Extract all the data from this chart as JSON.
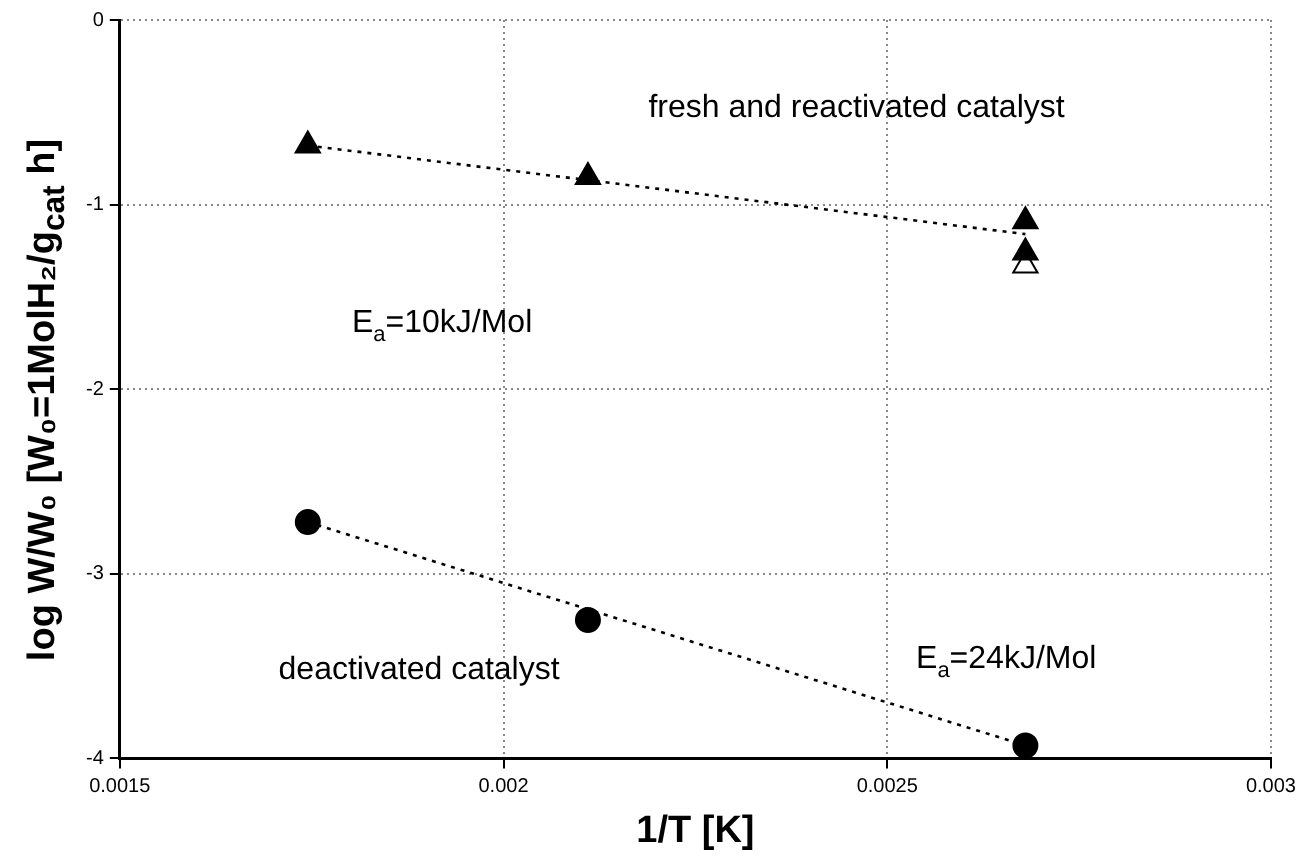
{
  "chart_data": {
    "type": "scatter",
    "xlabel": "1/T [K]",
    "ylabel": "log W/W₀ [W₀=1MolH₂/g$_{cat}$ h]",
    "xlim": [
      0.0015,
      0.003
    ],
    "xticks": [
      0.0015,
      0.002,
      0.0025,
      0.003
    ],
    "ylim": [
      -4,
      0
    ],
    "yticks": [
      -4,
      -3,
      -2,
      -1,
      0
    ],
    "grid": true,
    "legend": false,
    "series": [
      {
        "marker": "triangle",
        "color": "#000000",
        "x": [
          0.001745,
          0.00211,
          0.00268,
          0.00268
        ],
        "values": [
          -0.68,
          -0.85,
          -1.09,
          -1.26
        ]
      },
      {
        "marker": "triangle",
        "color": "#ffffff",
        "x": [
          0.00268
        ],
        "values": [
          -1.33
        ]
      },
      {
        "marker": "circle",
        "color": "#000000",
        "x": [
          0.001745,
          0.00211,
          0.00268
        ],
        "values": [
          -2.72,
          -3.25,
          -3.93
        ]
      },
      {
        "type": "line",
        "marker": "none",
        "line_style": "dotted",
        "color": "#000000",
        "x": [
          0.001745,
          0.00268
        ],
        "values": [
          -0.68,
          -1.16
        ]
      },
      {
        "type": "line",
        "marker": "none",
        "line_style": "dotted",
        "color": "#000000",
        "x": [
          0.001745,
          0.00268
        ],
        "values": [
          -2.72,
          -3.93
        ]
      }
    ],
    "annotations": [
      "fresh and reactivated catalyst",
      "E$_{a}$=10kJ/Mol",
      "deactivated catalyst",
      "E$_{a}$=24kJ/Mol"
    ]
  }
}
